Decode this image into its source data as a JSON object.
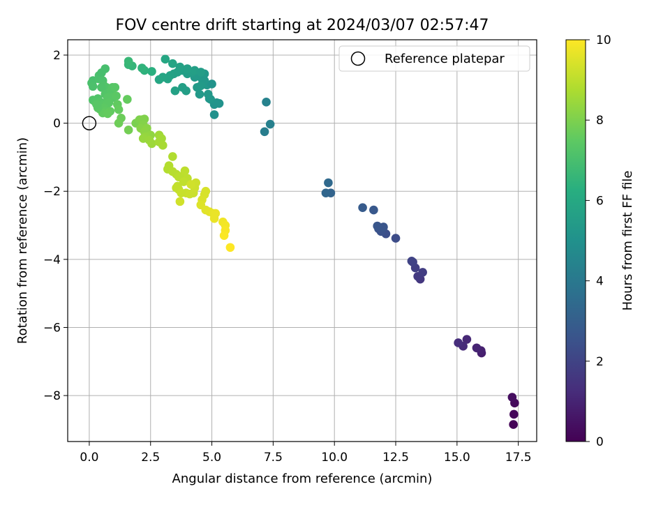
{
  "chart_data": {
    "type": "scatter",
    "title": "FOV centre drift starting at 2024/03/07 02:57:47",
    "xlabel": "Angular distance from reference (arcmin)",
    "ylabel": "Rotation from reference (arcmin)",
    "xlim": [
      -0.88,
      18.25
    ],
    "ylim": [
      -9.35,
      2.45
    ],
    "xticks": [
      0.0,
      2.5,
      5.0,
      7.5,
      10.0,
      12.5,
      15.0,
      17.5
    ],
    "xtick_labels": [
      "0.0",
      "2.5",
      "5.0",
      "7.5",
      "10.0",
      "12.5",
      "15.0",
      "17.5"
    ],
    "yticks": [
      2,
      0,
      -2,
      -4,
      -6,
      -8
    ],
    "ytick_labels": [
      "2",
      "0",
      "−2",
      "−4",
      "−6",
      "−8"
    ],
    "grid": true,
    "colormap": "viridis",
    "colorbar": {
      "label": "Hours from first FF file",
      "range": [
        0,
        10
      ],
      "ticks": [
        0,
        2,
        4,
        6,
        8,
        10
      ],
      "tick_labels": [
        "0",
        "2",
        "4",
        "6",
        "8",
        "10"
      ]
    },
    "legend": {
      "position": "top-right",
      "entries": [
        {
          "label": "Reference platepar",
          "marker": "open-circle",
          "color": "#000000"
        }
      ]
    },
    "reference_point": {
      "x": 0.0,
      "y": 0.0
    },
    "series": [
      {
        "points": [
          [
            17.3,
            -8.85,
            0.05
          ],
          [
            17.32,
            -8.55,
            0.15
          ],
          [
            17.35,
            -8.22,
            0.25
          ],
          [
            17.25,
            -8.05,
            0.35
          ],
          [
            16.0,
            -6.75,
            0.8
          ],
          [
            15.98,
            -6.68,
            0.9
          ],
          [
            15.8,
            -6.6,
            1.0
          ],
          [
            15.4,
            -6.35,
            1.1
          ],
          [
            15.25,
            -6.55,
            1.2
          ],
          [
            15.05,
            -6.45,
            1.3
          ],
          [
            13.5,
            -4.58,
            1.6
          ],
          [
            13.4,
            -4.5,
            1.7
          ],
          [
            13.6,
            -4.38,
            1.8
          ],
          [
            13.3,
            -4.25,
            1.85
          ],
          [
            13.2,
            -4.08,
            1.95
          ],
          [
            13.15,
            -4.05,
            2.0
          ],
          [
            12.5,
            -3.38,
            2.3
          ],
          [
            12.1,
            -3.25,
            2.4
          ],
          [
            11.9,
            -3.18,
            2.5
          ],
          [
            11.8,
            -3.1,
            2.55
          ],
          [
            12.0,
            -3.05,
            2.6
          ],
          [
            11.75,
            -3.02,
            2.65
          ],
          [
            11.6,
            -2.55,
            2.75
          ],
          [
            11.15,
            -2.48,
            2.85
          ],
          [
            9.85,
            -2.05,
            3.2
          ],
          [
            9.65,
            -2.05,
            3.3
          ],
          [
            9.75,
            -1.75,
            3.4
          ],
          [
            7.15,
            -0.25,
            4.2
          ],
          [
            7.38,
            -0.03,
            4.3
          ],
          [
            7.22,
            0.62,
            4.4
          ],
          [
            5.1,
            0.25,
            5.0
          ],
          [
            5.3,
            0.58,
            5.05
          ],
          [
            5.1,
            0.55,
            5.1
          ],
          [
            5.2,
            0.6,
            5.15
          ],
          [
            4.95,
            0.7,
            5.2
          ],
          [
            4.9,
            0.72,
            5.25
          ],
          [
            4.85,
            0.85,
            5.3
          ],
          [
            4.5,
            0.85,
            5.35
          ],
          [
            4.4,
            1.05,
            5.4
          ],
          [
            4.8,
            1.12,
            5.3
          ],
          [
            4.75,
            1.15,
            5.3
          ],
          [
            5.0,
            1.15,
            5.1
          ],
          [
            4.7,
            1.25,
            5.3
          ],
          [
            4.6,
            1.3,
            5.3
          ],
          [
            4.3,
            1.35,
            5.35
          ],
          [
            4.4,
            1.4,
            5.4
          ],
          [
            4.5,
            1.45,
            5.35
          ],
          [
            4.7,
            1.45,
            5.3
          ],
          [
            4.2,
            1.5,
            5.5
          ],
          [
            4.0,
            1.45,
            5.55
          ],
          [
            3.8,
            1.55,
            5.6
          ],
          [
            3.6,
            1.5,
            5.65
          ],
          [
            3.45,
            1.45,
            5.7
          ],
          [
            3.3,
            1.4,
            5.75
          ],
          [
            3.2,
            1.3,
            5.8
          ],
          [
            3.0,
            1.35,
            5.85
          ],
          [
            2.85,
            1.28,
            5.9
          ],
          [
            3.5,
            0.95,
            5.7
          ],
          [
            3.8,
            1.05,
            5.6
          ],
          [
            3.95,
            0.95,
            5.55
          ],
          [
            4.55,
            1.1,
            5.4
          ],
          [
            3.1,
            1.88,
            5.9
          ],
          [
            3.4,
            1.75,
            5.8
          ],
          [
            3.7,
            1.65,
            5.7
          ],
          [
            4.0,
            1.6,
            5.65
          ],
          [
            4.3,
            1.55,
            5.6
          ],
          [
            4.55,
            1.5,
            5.5
          ],
          [
            2.55,
            1.52,
            6.3
          ],
          [
            2.25,
            1.55,
            6.4
          ],
          [
            2.15,
            1.62,
            6.45
          ],
          [
            1.75,
            1.68,
            6.55
          ],
          [
            1.6,
            1.72,
            6.6
          ],
          [
            1.6,
            1.82,
            6.65
          ],
          [
            0.15,
            1.25,
            7.0
          ],
          [
            0.1,
            1.18,
            7.05
          ],
          [
            0.15,
            1.08,
            7.1
          ],
          [
            0.4,
            1.3,
            7.1
          ],
          [
            0.4,
            1.4,
            7.05
          ],
          [
            0.5,
            1.48,
            7.0
          ],
          [
            0.65,
            1.6,
            7.0
          ],
          [
            0.55,
            1.25,
            7.1
          ],
          [
            0.6,
            1.1,
            7.15
          ],
          [
            0.7,
            1.05,
            7.2
          ],
          [
            0.5,
            1.05,
            7.15
          ],
          [
            0.8,
            0.9,
            7.25
          ],
          [
            0.65,
            0.85,
            7.25
          ],
          [
            0.9,
            0.95,
            7.3
          ],
          [
            0.95,
            1.05,
            7.3
          ],
          [
            1.05,
            1.05,
            7.35
          ],
          [
            0.85,
            0.8,
            7.3
          ],
          [
            0.75,
            0.75,
            7.35
          ],
          [
            0.95,
            0.75,
            7.35
          ],
          [
            1.1,
            0.8,
            7.4
          ],
          [
            0.35,
            0.72,
            7.2
          ],
          [
            0.15,
            0.68,
            7.2
          ],
          [
            0.25,
            0.62,
            7.25
          ],
          [
            0.45,
            0.62,
            7.3
          ],
          [
            0.55,
            0.55,
            7.35
          ],
          [
            0.7,
            0.55,
            7.4
          ],
          [
            0.8,
            0.6,
            7.4
          ],
          [
            0.6,
            0.45,
            7.45
          ],
          [
            0.45,
            0.4,
            7.45
          ],
          [
            0.65,
            0.35,
            7.5
          ],
          [
            0.85,
            0.35,
            7.55
          ],
          [
            0.55,
            0.3,
            7.55
          ],
          [
            0.75,
            0.28,
            7.6
          ],
          [
            0.35,
            0.45,
            7.4
          ],
          [
            0.3,
            0.55,
            7.35
          ],
          [
            1.15,
            0.55,
            7.55
          ],
          [
            1.2,
            0.4,
            7.6
          ],
          [
            1.3,
            0.15,
            7.7
          ],
          [
            1.55,
            0.7,
            7.6
          ],
          [
            1.2,
            0.0,
            7.75
          ],
          [
            1.6,
            -0.2,
            7.85
          ],
          [
            1.9,
            0.0,
            7.95
          ],
          [
            2.05,
            0.1,
            8.0
          ],
          [
            2.15,
            0.1,
            8.05
          ],
          [
            2.25,
            0.12,
            8.05
          ],
          [
            2.2,
            -0.05,
            8.1
          ],
          [
            2.1,
            -0.15,
            8.15
          ],
          [
            2.35,
            -0.15,
            8.2
          ],
          [
            2.25,
            -0.25,
            8.25
          ],
          [
            2.5,
            -0.35,
            8.3
          ],
          [
            2.3,
            -0.4,
            8.35
          ],
          [
            2.2,
            -0.45,
            8.4
          ],
          [
            2.45,
            -0.5,
            8.45
          ],
          [
            2.55,
            -0.6,
            8.5
          ],
          [
            2.85,
            -0.35,
            8.55
          ],
          [
            2.95,
            -0.45,
            8.6
          ],
          [
            2.85,
            -0.55,
            8.6
          ],
          [
            3.0,
            -0.65,
            8.65
          ],
          [
            3.4,
            -0.98,
            8.8
          ],
          [
            3.25,
            -1.25,
            8.85
          ],
          [
            3.2,
            -1.35,
            8.85
          ],
          [
            3.4,
            -1.42,
            8.9
          ],
          [
            3.55,
            -1.5,
            8.9
          ],
          [
            3.65,
            -1.58,
            8.95
          ],
          [
            3.8,
            -1.55,
            8.95
          ],
          [
            3.9,
            -1.4,
            9.0
          ],
          [
            4.0,
            -1.62,
            9.0
          ],
          [
            3.85,
            -1.72,
            9.05
          ],
          [
            3.6,
            -1.85,
            9.05
          ],
          [
            3.55,
            -1.9,
            9.1
          ],
          [
            3.65,
            -1.95,
            9.1
          ],
          [
            3.75,
            -2.05,
            9.15
          ],
          [
            3.95,
            -2.05,
            9.15
          ],
          [
            4.1,
            -2.08,
            9.2
          ],
          [
            4.25,
            -2.05,
            9.2
          ],
          [
            4.3,
            -1.9,
            9.25
          ],
          [
            4.35,
            -1.75,
            9.25
          ],
          [
            4.15,
            -1.8,
            9.3
          ],
          [
            3.7,
            -2.3,
            9.3
          ],
          [
            4.75,
            -2.0,
            9.4
          ],
          [
            4.7,
            -2.1,
            9.4
          ],
          [
            4.6,
            -2.25,
            9.45
          ],
          [
            4.55,
            -2.4,
            9.5
          ],
          [
            4.75,
            -2.55,
            9.55
          ],
          [
            4.9,
            -2.6,
            9.6
          ],
          [
            5.05,
            -2.65,
            9.65
          ],
          [
            5.15,
            -2.65,
            9.7
          ],
          [
            5.1,
            -2.8,
            9.7
          ],
          [
            5.45,
            -2.9,
            9.8
          ],
          [
            5.55,
            -3.0,
            9.85
          ],
          [
            5.55,
            -3.15,
            9.9
          ],
          [
            5.5,
            -3.3,
            9.95
          ],
          [
            5.75,
            -3.65,
            10.0
          ]
        ]
      }
    ]
  }
}
